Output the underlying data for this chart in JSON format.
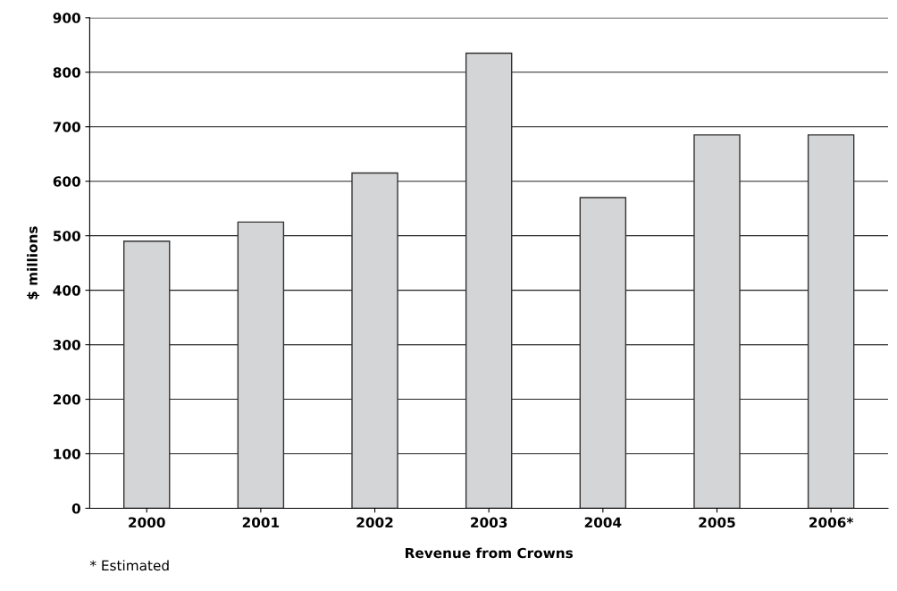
{
  "chart_data": {
    "type": "bar",
    "xlabel": "Revenue from Crowns",
    "ylabel": "$ millions",
    "categories": [
      "2000",
      "2001",
      "2002",
      "2003",
      "2004",
      "2005",
      "2006*"
    ],
    "values": [
      490,
      525,
      615,
      835,
      570,
      685,
      685
    ],
    "color": "#d4d5d7",
    "ylim": [
      0,
      900
    ],
    "yticks": [
      0,
      100,
      200,
      300,
      400,
      500,
      600,
      700,
      800,
      900
    ],
    "grid": "y",
    "annotations": [
      "* Estimated"
    ]
  }
}
